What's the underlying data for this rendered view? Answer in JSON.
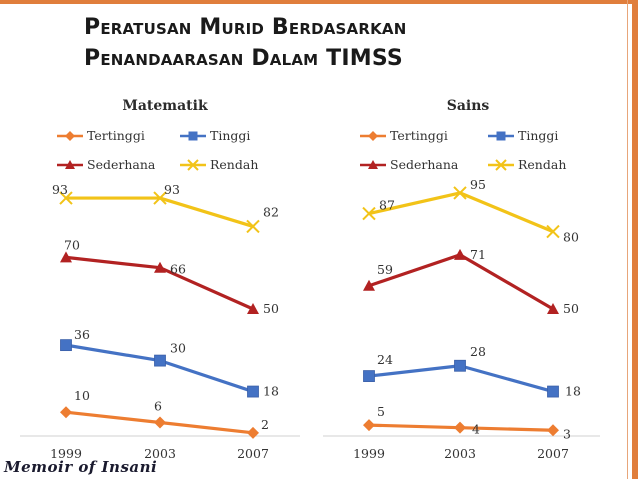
{
  "title_line1": "Peratusan Murid Berdasarkan",
  "title_line2": "Penandaarasan Dalam TIMSS",
  "watermark": "Memoir of Insani",
  "chart_data": [
    {
      "type": "line",
      "title": "Matematik",
      "x": [
        "1999",
        "2003",
        "2007"
      ],
      "ylim": [
        0,
        100
      ],
      "legend_position": "top",
      "series": [
        {
          "name": "Tertinggi",
          "color": "#ED7D31",
          "marker": "diamond",
          "values": [
            10,
            6,
            2
          ]
        },
        {
          "name": "Tinggi",
          "color": "#4472C4",
          "marker": "square",
          "values": [
            36,
            30,
            18
          ]
        },
        {
          "name": "Sederhana",
          "color": "#B22222",
          "marker": "triangle",
          "values": [
            70,
            66,
            50
          ]
        },
        {
          "name": "Rendah",
          "color": "#F2C318",
          "marker": "x",
          "values": [
            93,
            93,
            82
          ]
        }
      ]
    },
    {
      "type": "line",
      "title": "Sains",
      "x": [
        "1999",
        "2003",
        "2007"
      ],
      "ylim": [
        0,
        100
      ],
      "legend_position": "top",
      "series": [
        {
          "name": "Tertinggi",
          "color": "#ED7D31",
          "marker": "diamond",
          "values": [
            5,
            4,
            3
          ]
        },
        {
          "name": "Tinggi",
          "color": "#4472C4",
          "marker": "square",
          "values": [
            24,
            28,
            18
          ]
        },
        {
          "name": "Sederhana",
          "color": "#B22222",
          "marker": "triangle",
          "values": [
            59,
            71,
            50
          ]
        },
        {
          "name": "Rendah",
          "color": "#F2C318",
          "marker": "x",
          "values": [
            87,
            95,
            80
          ]
        }
      ]
    }
  ]
}
